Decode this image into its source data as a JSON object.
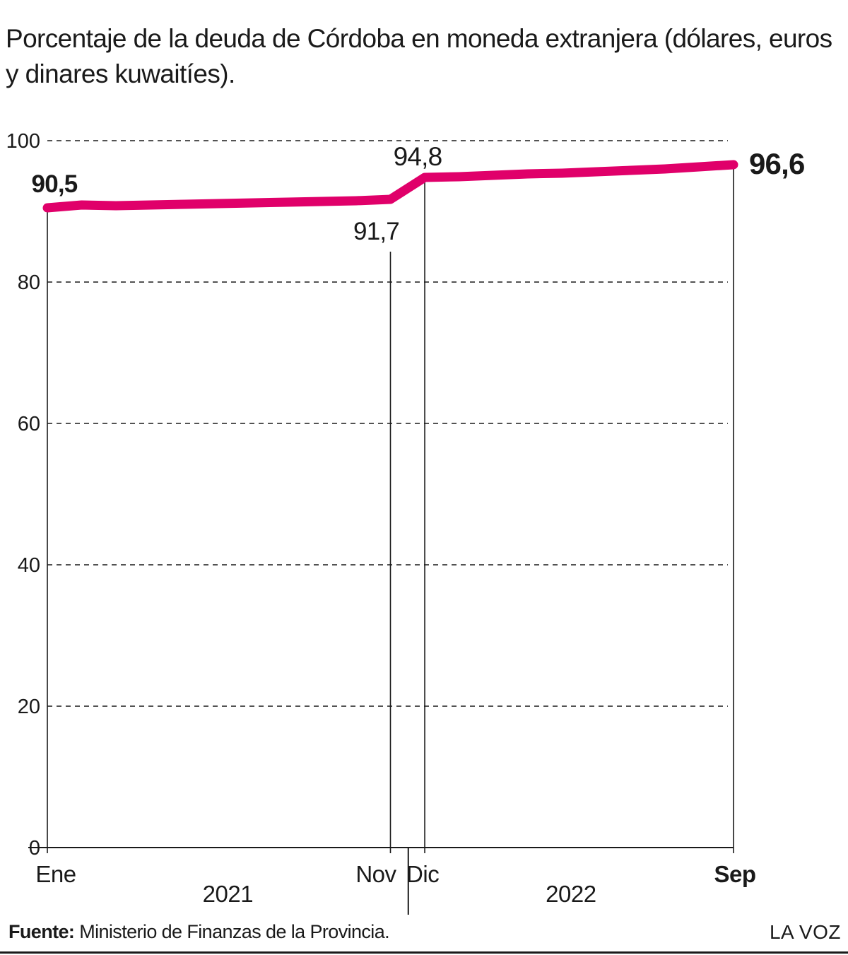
{
  "title": "Porcentaje de la deuda de Córdoba en moneda extranjera (dólares, euros y dinares kuwaitíes).",
  "source": {
    "label": "Fuente:",
    "text": "Ministerio de Finanzas de la Provincia."
  },
  "brand": "LA VOZ",
  "colors": {
    "line": "#e0006a",
    "grid": "#1a1a1a",
    "text": "#1a1a1a"
  },
  "chart_data": {
    "type": "line",
    "title": "Porcentaje de la deuda de Córdoba en moneda extranjera (dólares, euros y dinares kuwaitíes).",
    "xlabel": "",
    "ylabel": "",
    "ylim": [
      0,
      100
    ],
    "yticks": [
      "0",
      "20",
      "40",
      "60",
      "80",
      "100"
    ],
    "grid": "horizontal dashed",
    "x_tick_labels": [
      {
        "label": "Ene",
        "index": 0,
        "bold": false
      },
      {
        "label": "Nov",
        "index": 10,
        "bold": false
      },
      {
        "label": "Dic",
        "index": 11,
        "bold": false
      },
      {
        "label": "Sep",
        "index": 20,
        "bold": true
      }
    ],
    "periods": [
      {
        "label": "2021",
        "from": 0,
        "to": 11
      },
      {
        "label": "2022",
        "from": 11,
        "to": 20
      }
    ],
    "series": [
      {
        "x": [
          "2021-01",
          "2021-02",
          "2021-03",
          "2021-04",
          "2021-05",
          "2021-06",
          "2021-07",
          "2021-08",
          "2021-09",
          "2021-10",
          "2021-11",
          "2021-12",
          "2022-01",
          "2022-02",
          "2022-03",
          "2022-04",
          "2022-05",
          "2022-06",
          "2022-07",
          "2022-08",
          "2022-09"
        ],
        "values": [
          90.5,
          90.9,
          90.8,
          90.9,
          91.0,
          91.1,
          91.2,
          91.3,
          91.4,
          91.5,
          91.7,
          94.8,
          94.9,
          95.1,
          95.3,
          95.4,
          95.6,
          95.8,
          96.0,
          96.3,
          96.6
        ]
      }
    ],
    "annotations": [
      {
        "index": 0,
        "text": "90,5",
        "bold": true
      },
      {
        "index": 10,
        "text": "91,7",
        "bold": false
      },
      {
        "index": 11,
        "text": "94,8",
        "bold": false
      },
      {
        "index": 20,
        "text": "96,6",
        "bold": true
      }
    ]
  }
}
